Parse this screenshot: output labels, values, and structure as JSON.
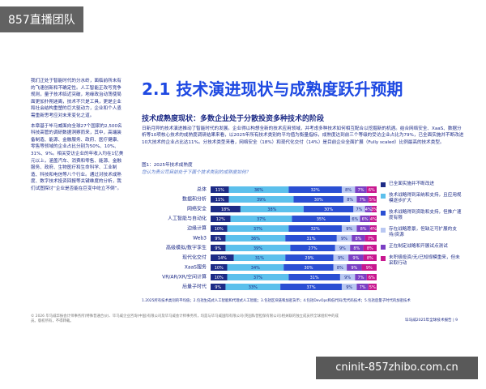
{
  "watermark_top": "857直播团队",
  "watermark_bottom": "cninit-857zhibo.com.cn",
  "sidebar": {
    "paragraphs": [
      "我们正处于智能时代的分水岭，面临前所未有的飞速创新和不确定性。人工智能正改写竞争规则，量子技术临近突破，地缘政治动荡使局面更加扑朔迷离，技术不只是工具，更是企业和社会结构重塑的巨大驱动力，企业和个人亟需重新思考应对未来变化之道。",
      "本章基于毕马威面向全球27个国家的2,500名科技高管的调研数据洞察而来，其中，高端装备制造、能源、金融服务、政府、医疗健康、零售等领域的企业占比分别为50%、10%、31%、9%。相关受访企业的年收入均在1亿美元以上，涵盖汽车、消费和零售、能源、金融服务、政府、生物医疗和生命科学、工业制造、科技和电信等八个行业。通过对技术成熟度、数字技术投资回报等关键维度的分析，我们试图探讨“企业是否能在巨变中屹立不倒”。"
    ]
  },
  "header": {
    "title": "2.1 技术演进现状与成熟度跃升预期",
    "subtitle": "技术成熟度现状：多数企业处于分散投资多种技术的阶段",
    "intro": "日新月异的技术演进推动了智能时代的发展。企业得以构想全新的技术应用领域，并考虑多种技术如何相互配合以挖掘新的机遇。结合网络安全、XaaS、数据分析等10项核心技术的成熟度调研结果来看，以2025年所有技术类别的平均值为衡量指标，成熟度达到前三个等级的受访企业占比为79%，已全面实施并不断改进10大技术的企业占比达11%。分技术类型来看，网络安全（18%）和现代化交付（14%）是目前企业全面扩展（Fully scaled）比例最高的技术类型。"
  },
  "chart_data": {
    "type": "bar",
    "orientation": "horizontal",
    "stacked": true,
    "title": "图1：2025年技术成熟度",
    "subtitle": "您认为贵公司目前处于下面个技术类别的成熟度如何？",
    "categories": [
      "总体",
      "数据和分析",
      "网络安全",
      "人工智能与自动化",
      "边缘计算",
      "Web3",
      "高级模拟/数字孪生",
      "现代化交付",
      "XaaS服务",
      "VR/AR/XR/空间计算",
      "后量子时代"
    ],
    "xlim": [
      0,
      100
    ],
    "series": [
      {
        "name": "已全面实施并不断改进",
        "color": "#1d2b86",
        "values": [
          11,
          11,
          18,
          12,
          10,
          9,
          9,
          14,
          10,
          10,
          9
        ],
        "value_labels": [
          "11%",
          "11%",
          "18%",
          "12%",
          "10%",
          "9%",
          "9%",
          "14%",
          "10%",
          "10%",
          "9%"
        ]
      },
      {
        "name": "技术战略得到采纳和支持，且应用规模逐步扩大",
        "color": "#5cc0ec",
        "values": [
          36,
          39,
          38,
          37,
          37,
          36,
          39,
          31,
          34,
          37,
          33
        ],
        "value_labels": [
          "36%",
          "39%",
          "38%",
          "37%",
          "37%",
          "36%",
          "39%",
          "31%",
          "34%",
          "37%",
          "33%"
        ]
      },
      {
        "name": "技术战略得到资助和支持，但推广速度有限",
        "color": "#2a4fd3",
        "values": [
          32,
          30,
          30,
          35,
          32,
          31,
          27,
          29,
          30,
          31,
          37
        ],
        "value_labels": [
          "32%",
          "30%",
          "30%",
          "35%",
          "32%",
          "31%",
          "27%",
          "29%",
          "30%",
          "31%",
          "37%"
        ]
      },
      {
        "name": "存在战略愿景，但缺乏可扩展的支持/资源",
        "color": "#b9c8f2",
        "values": [
          8,
          8,
          7,
          6,
          9,
          9,
          9,
          9,
          8,
          9,
          9
        ],
        "value_labels": [
          "8%",
          "8%",
          "7%",
          "6%",
          "9%",
          "9%",
          "9%",
          "9%",
          "8%",
          "9%",
          "9%"
        ]
      },
      {
        "name": "正在制定战略和开展试点测试",
        "color": "#7a3fc4",
        "values": [
          7,
          7,
          4,
          6,
          8,
          8,
          8,
          9,
          9,
          7,
          7
        ],
        "value_labels": [
          "7%",
          "7%",
          "4%",
          "6%",
          "8%",
          "8%",
          "8%",
          "9%",
          "9%",
          "7%",
          "7%"
        ]
      },
      {
        "name": "未积极投资/无/已知规模重来，但未采取行动",
        "color": "#c8178f",
        "values": [
          6,
          5,
          3,
          4,
          4,
          7,
          8,
          8,
          9,
          6,
          5
        ],
        "value_labels": [
          "6%",
          "5%",
          "3%",
          "4%",
          "4%",
          "7%",
          "8%",
          "8%",
          "9%",
          "6%",
          "5%"
        ]
      }
    ]
  },
  "footnotes": "1.2025所有技术类别的平均值；2.包括生成式人工智能和代理式人工智能；3.包括区块链和加密货币；4.包括DevOps和低代码/无代码技术；5.包括后量子时代的加密技术",
  "copyright": "© 2026 毕马威华振会计师事务所(特殊普通合伙)、毕马威企业咨询(中国)有限公司及毕马威会计师事务所，均是与毕马威国际有限公司(英国私营担保有限公司)相关联的独立成员所全球组织中的成员。版权所有，不得转载。",
  "page_footer": "毕马威2025年全球技术报告 | 9"
}
